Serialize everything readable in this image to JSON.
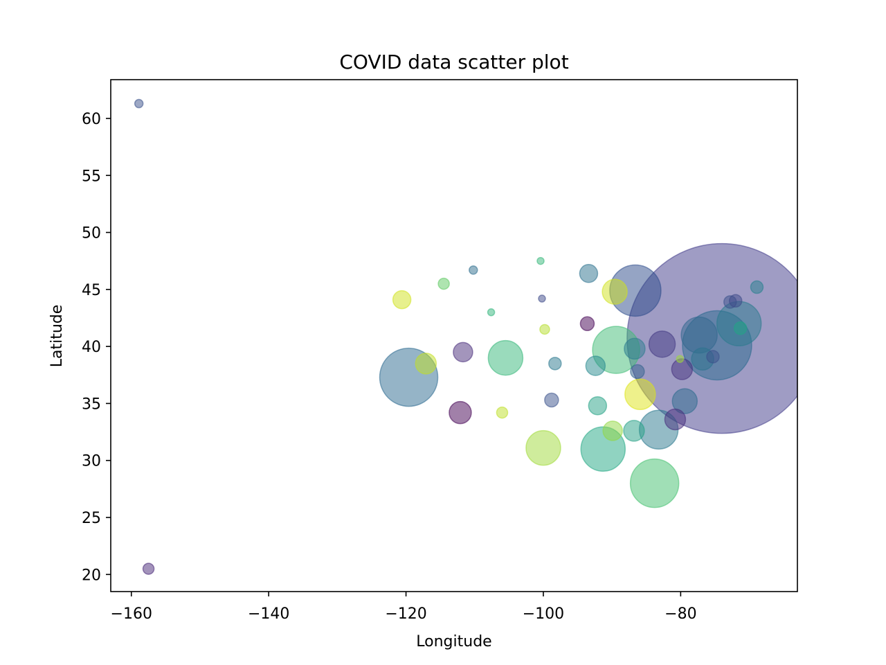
{
  "chart_data": {
    "type": "scatter",
    "title": "COVID data scatter plot",
    "xlabel": "Longitude",
    "ylabel": "Latitude",
    "xlim": [
      -163,
      -63
    ],
    "ylim": [
      18.5,
      63.4
    ],
    "xticks": [
      -160,
      -140,
      -120,
      -100,
      -80
    ],
    "yticks": [
      20,
      25,
      30,
      35,
      40,
      45,
      50,
      55,
      60
    ],
    "grid": false,
    "legend": "none",
    "alpha": 0.5,
    "colormap": "viridis",
    "points": [
      {
        "x": -74.0,
        "y": 40.7,
        "size": 137,
        "color": "#403a89"
      },
      {
        "x": -74.7,
        "y": 40.1,
        "size": 50,
        "color": "#2a6a8e"
      },
      {
        "x": -119.6,
        "y": 37.3,
        "size": 42,
        "color": "#2c6a90"
      },
      {
        "x": -86.6,
        "y": 44.9,
        "size": 37,
        "color": "#2c4a8a"
      },
      {
        "x": -89.4,
        "y": 39.7,
        "size": 34,
        "color": "#3fbb75"
      },
      {
        "x": -71.5,
        "y": 42.0,
        "size": 32,
        "color": "#2a7a8d"
      },
      {
        "x": -83.8,
        "y": 28.0,
        "size": 35,
        "color": "#42c06e"
      },
      {
        "x": -91.3,
        "y": 31.0,
        "size": 32,
        "color": "#22a884"
      },
      {
        "x": -77.3,
        "y": 41.0,
        "size": 26,
        "color": "#31688e"
      },
      {
        "x": -83.2,
        "y": 32.7,
        "size": 28,
        "color": "#2a788e"
      },
      {
        "x": -105.5,
        "y": 39.0,
        "size": 25,
        "color": "#35b779"
      },
      {
        "x": -100.0,
        "y": 31.1,
        "size": 25,
        "color": "#a0da39"
      },
      {
        "x": -85.9,
        "y": 35.8,
        "size": 22,
        "color": "#dde318"
      },
      {
        "x": -82.7,
        "y": 40.2,
        "size": 19,
        "color": "#443a83"
      },
      {
        "x": -89.6,
        "y": 44.8,
        "size": 18,
        "color": "#d0e11c"
      },
      {
        "x": -79.4,
        "y": 35.2,
        "size": 18,
        "color": "#2e6b8e"
      },
      {
        "x": -76.8,
        "y": 38.9,
        "size": 16,
        "color": "#2c738e"
      },
      {
        "x": -86.7,
        "y": 39.8,
        "size": 15,
        "color": "#2b7c8e"
      },
      {
        "x": -80.8,
        "y": 33.6,
        "size": 15,
        "color": "#472d7b"
      },
      {
        "x": -79.8,
        "y": 38.0,
        "size": 15,
        "color": "#46327e"
      },
      {
        "x": -86.8,
        "y": 32.6,
        "size": 15,
        "color": "#25a085"
      },
      {
        "x": -117.1,
        "y": 38.5,
        "size": 15,
        "color": "#c2df23"
      },
      {
        "x": -92.4,
        "y": 38.3,
        "size": 14,
        "color": "#26898e"
      },
      {
        "x": -120.6,
        "y": 44.1,
        "size": 13,
        "color": "#cfe11c"
      },
      {
        "x": -112.1,
        "y": 34.2,
        "size": 16,
        "color": "#440154"
      },
      {
        "x": -111.7,
        "y": 39.5,
        "size": 14,
        "color": "#472c7a"
      },
      {
        "x": -92.1,
        "y": 34.8,
        "size": 13,
        "color": "#25a285"
      },
      {
        "x": -89.9,
        "y": 32.6,
        "size": 14,
        "color": "#91d742"
      },
      {
        "x": -93.4,
        "y": 46.4,
        "size": 13,
        "color": "#2c718e"
      },
      {
        "x": -98.8,
        "y": 35.3,
        "size": 10,
        "color": "#3a528b"
      },
      {
        "x": -86.3,
        "y": 37.8,
        "size": 10,
        "color": "#33638d"
      },
      {
        "x": -75.3,
        "y": 39.1,
        "size": 9,
        "color": "#3b518b"
      },
      {
        "x": -98.3,
        "y": 38.5,
        "size": 9,
        "color": "#2a788e"
      },
      {
        "x": -93.6,
        "y": 42.0,
        "size": 10,
        "color": "#440154"
      },
      {
        "x": -71.3,
        "y": 41.6,
        "size": 9,
        "color": "#21a585"
      },
      {
        "x": -72.8,
        "y": 43.9,
        "size": 9,
        "color": "#3b528b"
      },
      {
        "x": -72.0,
        "y": 44.0,
        "size": 9,
        "color": "#3e4a89"
      },
      {
        "x": -68.9,
        "y": 45.2,
        "size": 9,
        "color": "#277f8e"
      },
      {
        "x": -114.5,
        "y": 45.5,
        "size": 8,
        "color": "#5ec962"
      },
      {
        "x": -106.0,
        "y": 34.2,
        "size": 8,
        "color": "#bddf26"
      },
      {
        "x": -99.8,
        "y": 41.5,
        "size": 7,
        "color": "#b5de2b"
      },
      {
        "x": -110.2,
        "y": 46.7,
        "size": 6,
        "color": "#2e6e8e"
      },
      {
        "x": -158.9,
        "y": 61.3,
        "size": 6,
        "color": "#3b528b"
      },
      {
        "x": -157.5,
        "y": 20.5,
        "size": 8,
        "color": "#482878"
      },
      {
        "x": -107.6,
        "y": 43.0,
        "size": 5,
        "color": "#31b57b"
      },
      {
        "x": -100.4,
        "y": 47.5,
        "size": 5,
        "color": "#35b779"
      },
      {
        "x": -100.2,
        "y": 44.2,
        "size": 5,
        "color": "#3e4a89"
      },
      {
        "x": -80.1,
        "y": 38.9,
        "size": 5,
        "color": "#9fda3a"
      }
    ]
  }
}
